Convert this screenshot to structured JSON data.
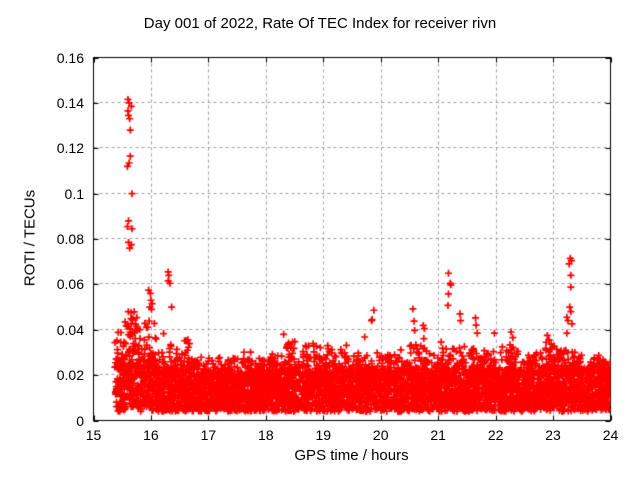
{
  "page": {
    "background": "#ffffff"
  },
  "chart_data": {
    "type": "scatter",
    "title": "Day 001 of 2022, Rate Of TEC Index for receiver rivn",
    "xlabel": "GPS time / hours",
    "ylabel": "ROTI / TECUs",
    "series_name": "ROTI",
    "xlim": [
      15,
      24
    ],
    "ylim": [
      0,
      0.16
    ],
    "xticks": [
      15,
      16,
      17,
      18,
      19,
      20,
      21,
      22,
      23,
      24
    ],
    "xtick_labels": [
      "15",
      "16",
      "17",
      "18",
      "19",
      "20",
      "21",
      "22",
      "23",
      "24"
    ],
    "yticks": [
      0,
      0.02,
      0.04,
      0.06,
      0.08,
      0.1,
      0.12,
      0.14,
      0.16
    ],
    "ytick_labels": [
      "0",
      "0.02",
      "0.04",
      "0.06",
      "0.08",
      "0.1",
      "0.12",
      "0.14",
      "0.16"
    ],
    "grid": true,
    "grid_style": "dashed",
    "grid_color": "#a0a0a0",
    "axis_color": "#000000",
    "legend_position": "none",
    "marker": {
      "shape": "plus",
      "color": "#ff0000",
      "size": 7
    },
    "data_model": {
      "description": "Dense noisy ROTI baseline band from ~15.37h to 24h plus discrete high-value spikes. band_segments entries are [x_start_h, x_end_h, n_points, y_min, y_core_top, y_envelope_top]; outliers are explicit [gps_hour, roti] points read from the plot.",
      "seed": 7,
      "core_fraction": 0.76,
      "band_segments": [
        [
          15.37,
          15.55,
          105,
          0.004,
          0.024,
          0.04
        ],
        [
          15.55,
          15.8,
          165,
          0.005,
          0.03,
          0.048
        ],
        [
          15.8,
          16.1,
          180,
          0.004,
          0.026,
          0.046
        ],
        [
          16.1,
          16.3,
          125,
          0.004,
          0.022,
          0.033
        ],
        [
          16.3,
          16.45,
          100,
          0.004,
          0.022,
          0.034
        ],
        [
          16.45,
          16.7,
          160,
          0.004,
          0.022,
          0.037
        ],
        [
          16.7,
          17.0,
          180,
          0.004,
          0.02,
          0.028
        ],
        [
          17.0,
          17.3,
          190,
          0.004,
          0.02,
          0.028
        ],
        [
          17.3,
          17.55,
          160,
          0.004,
          0.02,
          0.028
        ],
        [
          17.55,
          17.8,
          160,
          0.004,
          0.02,
          0.031
        ],
        [
          17.8,
          18.05,
          165,
          0.004,
          0.02,
          0.028
        ],
        [
          18.05,
          18.3,
          165,
          0.004,
          0.021,
          0.03
        ],
        [
          18.3,
          18.6,
          190,
          0.004,
          0.022,
          0.035
        ],
        [
          18.6,
          18.95,
          210,
          0.004,
          0.021,
          0.034
        ],
        [
          18.95,
          19.05,
          70,
          0.004,
          0.02,
          0.028
        ],
        [
          19.05,
          19.45,
          250,
          0.004,
          0.021,
          0.034
        ],
        [
          19.45,
          19.7,
          160,
          0.004,
          0.02,
          0.03
        ],
        [
          19.7,
          20.05,
          220,
          0.004,
          0.02,
          0.031
        ],
        [
          20.05,
          20.25,
          130,
          0.004,
          0.02,
          0.029
        ],
        [
          20.25,
          20.45,
          130,
          0.004,
          0.021,
          0.032
        ],
        [
          20.45,
          20.8,
          220,
          0.004,
          0.021,
          0.034
        ],
        [
          20.8,
          21.05,
          160,
          0.004,
          0.02,
          0.031
        ],
        [
          21.05,
          21.3,
          160,
          0.004,
          0.022,
          0.035
        ],
        [
          21.3,
          21.55,
          160,
          0.004,
          0.021,
          0.033
        ],
        [
          21.55,
          21.8,
          160,
          0.004,
          0.021,
          0.032
        ],
        [
          21.8,
          22.05,
          160,
          0.004,
          0.021,
          0.031
        ],
        [
          22.05,
          22.4,
          225,
          0.004,
          0.022,
          0.034
        ],
        [
          22.4,
          22.6,
          130,
          0.004,
          0.02,
          0.029
        ],
        [
          22.6,
          22.85,
          160,
          0.004,
          0.021,
          0.03
        ],
        [
          22.85,
          23.1,
          165,
          0.004,
          0.022,
          0.035
        ],
        [
          23.1,
          23.3,
          130,
          0.004,
          0.022,
          0.032
        ],
        [
          23.3,
          23.55,
          165,
          0.004,
          0.022,
          0.033
        ],
        [
          23.55,
          23.8,
          160,
          0.004,
          0.021,
          0.029
        ],
        [
          23.8,
          24.0,
          135,
          0.004,
          0.022,
          0.027
        ]
      ],
      "outliers": [
        [
          15.6,
          0.1415
        ],
        [
          15.62,
          0.14
        ],
        [
          15.66,
          0.1385
        ],
        [
          15.6,
          0.1365
        ],
        [
          15.61,
          0.1345
        ],
        [
          15.63,
          0.133
        ],
        [
          15.64,
          0.128
        ],
        [
          15.64,
          0.1165
        ],
        [
          15.62,
          0.1135
        ],
        [
          15.59,
          0.112
        ],
        [
          15.67,
          0.1
        ],
        [
          15.61,
          0.088
        ],
        [
          15.59,
          0.0855
        ],
        [
          15.67,
          0.0845
        ],
        [
          15.61,
          0.0785
        ],
        [
          15.66,
          0.0775
        ],
        [
          15.63,
          0.076
        ],
        [
          15.96,
          0.0575
        ],
        [
          15.99,
          0.056
        ],
        [
          16.0,
          0.053
        ],
        [
          16.02,
          0.0515
        ],
        [
          15.98,
          0.05
        ],
        [
          16.01,
          0.049
        ],
        [
          16.3,
          0.0655
        ],
        [
          16.31,
          0.064
        ],
        [
          16.3,
          0.0615
        ],
        [
          16.33,
          0.0605
        ],
        [
          16.36,
          0.05
        ],
        [
          16.22,
          0.0383
        ],
        [
          18.31,
          0.038
        ],
        [
          19.72,
          0.0368
        ],
        [
          19.84,
          0.044
        ],
        [
          19.85,
          0.0445
        ],
        [
          19.88,
          0.0486
        ],
        [
          20.56,
          0.0492
        ],
        [
          20.58,
          0.0438
        ],
        [
          20.59,
          0.0397
        ],
        [
          20.74,
          0.0419
        ],
        [
          20.76,
          0.0405
        ],
        [
          20.75,
          0.0361
        ],
        [
          21.18,
          0.0649
        ],
        [
          21.21,
          0.0605
        ],
        [
          21.22,
          0.0598
        ],
        [
          21.18,
          0.0558
        ],
        [
          21.17,
          0.0507
        ],
        [
          21.38,
          0.047
        ],
        [
          21.39,
          0.044
        ],
        [
          21.65,
          0.0452
        ],
        [
          21.66,
          0.042
        ],
        [
          21.68,
          0.0385
        ],
        [
          21.98,
          0.0385
        ],
        [
          22.27,
          0.039
        ],
        [
          22.3,
          0.0365
        ],
        [
          22.9,
          0.0375
        ],
        [
          22.93,
          0.0355
        ],
        [
          22.88,
          0.0345
        ],
        [
          23.3,
          0.0715
        ],
        [
          23.32,
          0.0705
        ],
        [
          23.28,
          0.069
        ],
        [
          23.31,
          0.064
        ],
        [
          23.31,
          0.0588
        ],
        [
          23.29,
          0.05
        ],
        [
          23.31,
          0.048
        ],
        [
          23.24,
          0.0455
        ],
        [
          23.26,
          0.044
        ],
        [
          23.33,
          0.0426
        ],
        [
          23.24,
          0.0385
        ]
      ]
    }
  }
}
